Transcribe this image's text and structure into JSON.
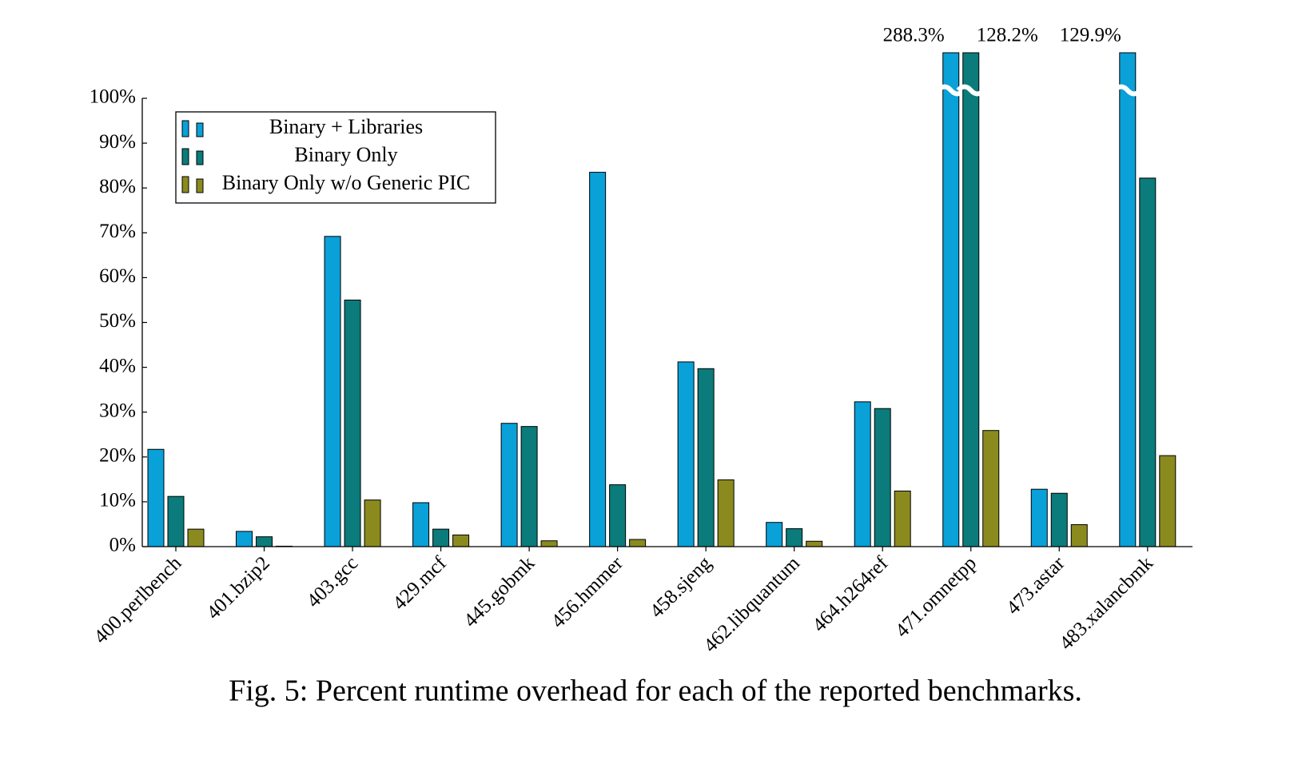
{
  "chart_data": {
    "type": "bar",
    "title": "Fig. 5: Percent runtime overhead for each of the reported benchmarks.",
    "categories": [
      "400.perlbench",
      "401.bzip2",
      "403.gcc",
      "429.mcf",
      "445.gobmk",
      "456.hmmer",
      "458.sjeng",
      "462.libquantum",
      "464.h264ref",
      "471.omnetpp",
      "473.astar",
      "483.xalancbmk"
    ],
    "series": [
      {
        "name": "Binary + Libraries",
        "color": "#0aa0d8",
        "values": [
          21.7,
          3.4,
          69.2,
          9.8,
          27.5,
          83.5,
          41.2,
          5.4,
          32.3,
          288.3,
          12.8,
          129.9
        ],
        "value_labels": [
          null,
          null,
          null,
          null,
          null,
          null,
          null,
          null,
          null,
          "288.3%",
          null,
          "129.9%"
        ]
      },
      {
        "name": "Binary Only",
        "color": "#0b7b7b",
        "values": [
          11.2,
          2.2,
          55.0,
          3.9,
          26.8,
          13.8,
          39.7,
          4.0,
          30.8,
          128.2,
          11.9,
          82.2
        ],
        "value_labels": [
          null,
          null,
          null,
          null,
          null,
          null,
          null,
          null,
          null,
          "128.2%",
          null,
          null
        ]
      },
      {
        "name": "Binary Only w/o Generic PIC",
        "color": "#8a8a1f",
        "values": [
          3.9,
          0.1,
          10.4,
          2.6,
          1.3,
          1.6,
          14.9,
          1.2,
          12.4,
          25.9,
          4.9,
          20.3
        ],
        "value_labels": [
          null,
          null,
          null,
          null,
          null,
          null,
          null,
          null,
          null,
          null,
          null,
          null
        ]
      }
    ],
    "ylim": [
      0,
      100
    ],
    "yticks": [
      {
        "value": 0,
        "label": "0%"
      },
      {
        "value": 10,
        "label": "10%"
      },
      {
        "value": 20,
        "label": "20%"
      },
      {
        "value": 30,
        "label": "30%"
      },
      {
        "value": 40,
        "label": "40%"
      },
      {
        "value": 50,
        "label": "50%"
      },
      {
        "value": 60,
        "label": "60%"
      },
      {
        "value": 70,
        "label": "70%"
      },
      {
        "value": 80,
        "label": "80%"
      },
      {
        "value": 90,
        "label": "90%"
      },
      {
        "value": 100,
        "label": "100%"
      }
    ],
    "grid": false,
    "legend": "top-left"
  }
}
